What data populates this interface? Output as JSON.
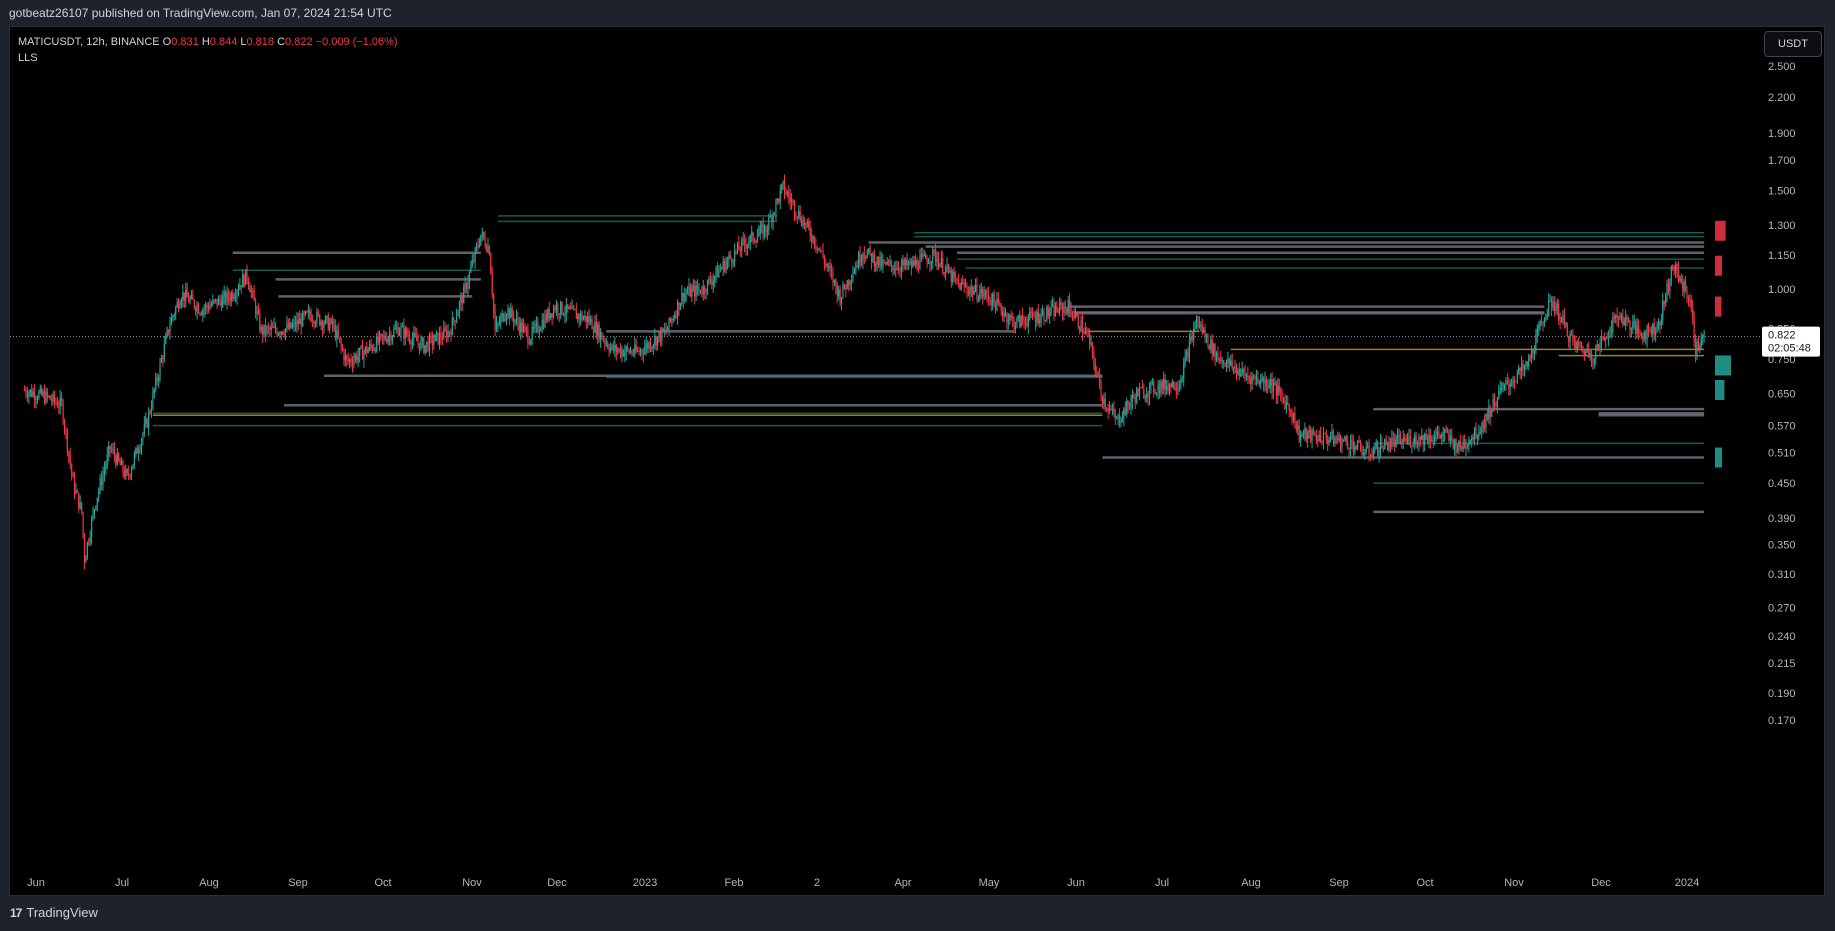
{
  "header": {
    "published_text": "gotbeatz26107 published on TradingView.com, Jan 07, 2024 21:54 UTC"
  },
  "legend": {
    "symbol": "MATICUSDT, 12h, BINANCE",
    "open_label": "O",
    "open": "0.831",
    "high_label": "H",
    "high": "0.844",
    "low_label": "L",
    "low": "0.818",
    "close_label": "C",
    "close": "0.822",
    "change": "−0.009 (−1.06%)",
    "study": "LLS"
  },
  "currency_button": "USDT",
  "footer": {
    "brand": "TradingView",
    "brand_glyph": "17"
  },
  "price_tag": {
    "price": "0.822",
    "countdown": "02:05:48"
  },
  "colors": {
    "up": "#26a69a",
    "down": "#f23645",
    "level_teal": "#26a69a",
    "level_gray": "#787b86",
    "level_gold": "#c9a227",
    "background": "#000000"
  },
  "chart_data": {
    "type": "candlestick",
    "symbol": "MATICUSDT",
    "interval": "12h",
    "exchange": "BINANCE",
    "yscale": "log",
    "ylim": [
      0.16,
      2.7
    ],
    "y_ticks": [
      "2.500",
      "2.200",
      "1.900",
      "1.700",
      "1.500",
      "1.300",
      "1.150",
      "1.000",
      "0.850",
      "0.750",
      "0.650",
      "0.570",
      "0.510",
      "0.450",
      "0.390",
      "0.350",
      "0.310",
      "0.270",
      "0.240",
      "0.215",
      "0.190",
      "0.170"
    ],
    "x_ticks": [
      "Jun",
      "Jul",
      "Aug",
      "Sep",
      "Oct",
      "Nov",
      "Dec",
      "2023",
      "Feb",
      "2",
      "Apr",
      "May",
      "Jun",
      "Jul",
      "Aug",
      "Sep",
      "Oct",
      "Nov",
      "Dec",
      "2024"
    ],
    "x_range": [
      "2022-05-28",
      "2024-01-07"
    ],
    "price_path": [
      [
        "2022-05-28",
        0.66
      ],
      [
        "2022-06-05",
        0.64
      ],
      [
        "2022-06-10",
        0.62
      ],
      [
        "2022-06-14",
        0.45
      ],
      [
        "2022-06-17",
        0.4
      ],
      [
        "2022-06-18",
        0.33
      ],
      [
        "2022-06-22",
        0.42
      ],
      [
        "2022-06-27",
        0.52
      ],
      [
        "2022-07-03",
        0.46
      ],
      [
        "2022-07-10",
        0.58
      ],
      [
        "2022-07-18",
        0.87
      ],
      [
        "2022-07-22",
        0.98
      ],
      [
        "2022-07-29",
        0.92
      ],
      [
        "2022-08-08",
        0.97
      ],
      [
        "2022-08-14",
        1.06
      ],
      [
        "2022-08-19",
        0.84
      ],
      [
        "2022-08-29",
        0.85
      ],
      [
        "2022-09-05",
        0.9
      ],
      [
        "2022-09-13",
        0.86
      ],
      [
        "2022-09-18",
        0.74
      ],
      [
        "2022-09-27",
        0.79
      ],
      [
        "2022-10-06",
        0.85
      ],
      [
        "2022-10-15",
        0.79
      ],
      [
        "2022-10-24",
        0.84
      ],
      [
        "2022-10-29",
        0.98
      ],
      [
        "2022-11-04",
        1.25
      ],
      [
        "2022-11-07",
        1.18
      ],
      [
        "2022-11-09",
        0.84
      ],
      [
        "2022-11-13",
        0.92
      ],
      [
        "2022-11-21",
        0.82
      ],
      [
        "2022-11-30",
        0.93
      ],
      [
        "2022-12-12",
        0.88
      ],
      [
        "2022-12-20",
        0.78
      ],
      [
        "2022-12-29",
        0.77
      ],
      [
        "2023-01-08",
        0.84
      ],
      [
        "2023-01-14",
        0.98
      ],
      [
        "2023-01-21",
        1.0
      ],
      [
        "2023-01-28",
        1.1
      ],
      [
        "2023-02-04",
        1.2
      ],
      [
        "2023-02-12",
        1.28
      ],
      [
        "2023-02-18",
        1.52
      ],
      [
        "2023-02-22",
        1.4
      ],
      [
        "2023-03-02",
        1.2
      ],
      [
        "2023-03-10",
        0.97
      ],
      [
        "2023-03-18",
        1.17
      ],
      [
        "2023-03-25",
        1.1
      ],
      [
        "2023-04-04",
        1.1
      ],
      [
        "2023-04-12",
        1.15
      ],
      [
        "2023-04-20",
        1.02
      ],
      [
        "2023-05-01",
        0.97
      ],
      [
        "2023-05-10",
        0.87
      ],
      [
        "2023-05-20",
        0.9
      ],
      [
        "2023-05-29",
        0.93
      ],
      [
        "2023-06-05",
        0.82
      ],
      [
        "2023-06-10",
        0.64
      ],
      [
        "2023-06-15",
        0.58
      ],
      [
        "2023-06-22",
        0.65
      ],
      [
        "2023-06-30",
        0.67
      ],
      [
        "2023-07-07",
        0.68
      ],
      [
        "2023-07-13",
        0.88
      ],
      [
        "2023-07-20",
        0.76
      ],
      [
        "2023-07-30",
        0.7
      ],
      [
        "2023-08-08",
        0.68
      ],
      [
        "2023-08-15",
        0.61
      ],
      [
        "2023-08-18",
        0.55
      ],
      [
        "2023-08-30",
        0.54
      ],
      [
        "2023-09-05",
        0.53
      ],
      [
        "2023-09-11",
        0.51
      ],
      [
        "2023-09-18",
        0.53
      ],
      [
        "2023-09-28",
        0.54
      ],
      [
        "2023-10-08",
        0.55
      ],
      [
        "2023-10-13",
        0.52
      ],
      [
        "2023-10-20",
        0.56
      ],
      [
        "2023-10-28",
        0.66
      ],
      [
        "2023-11-06",
        0.73
      ],
      [
        "2023-11-12",
        0.9
      ],
      [
        "2023-11-15",
        0.95
      ],
      [
        "2023-11-22",
        0.8
      ],
      [
        "2023-11-29",
        0.76
      ],
      [
        "2023-12-08",
        0.9
      ],
      [
        "2023-12-16",
        0.83
      ],
      [
        "2023-12-22",
        0.86
      ],
      [
        "2023-12-27",
        1.1
      ],
      [
        "2024-01-02",
        0.96
      ],
      [
        "2024-01-04",
        0.78
      ],
      [
        "2024-01-07",
        0.822
      ]
    ],
    "levels": [
      {
        "price": 1.26,
        "from": "2023-04-05",
        "to": "2024-01-07",
        "color": "teal"
      },
      {
        "price": 1.24,
        "from": "2023-04-05",
        "to": "2024-01-07",
        "color": "teal"
      },
      {
        "price": 1.21,
        "from": "2023-03-20",
        "to": "2024-01-07",
        "color": "gray"
      },
      {
        "price": 1.19,
        "from": "2023-04-09",
        "to": "2024-01-07",
        "color": "gray"
      },
      {
        "price": 1.16,
        "from": "2023-04-20",
        "to": "2024-01-07",
        "color": "gray"
      },
      {
        "price": 1.13,
        "from": "2023-04-20",
        "to": "2024-01-07",
        "color": "teal"
      },
      {
        "price": 1.09,
        "from": "2023-04-23",
        "to": "2024-01-07",
        "color": "teal"
      },
      {
        "price": 1.35,
        "from": "2022-11-10",
        "to": "2023-02-16",
        "color": "teal"
      },
      {
        "price": 1.32,
        "from": "2022-11-10",
        "to": "2023-02-16",
        "color": "teal"
      },
      {
        "price": 1.16,
        "from": "2022-08-09",
        "to": "2022-11-04",
        "color": "gray"
      },
      {
        "price": 1.08,
        "from": "2022-08-09",
        "to": "2022-11-04",
        "color": "teal"
      },
      {
        "price": 1.04,
        "from": "2022-08-24",
        "to": "2022-11-04",
        "color": "gray"
      },
      {
        "price": 0.97,
        "from": "2022-08-25",
        "to": "2022-11-01",
        "color": "gray"
      },
      {
        "price": 0.93,
        "from": "2023-05-29",
        "to": "2023-11-12",
        "color": "gray"
      },
      {
        "price": 0.91,
        "from": "2023-05-31",
        "to": "2023-11-12",
        "color": "red"
      },
      {
        "price": 0.905,
        "from": "2023-05-31",
        "to": "2023-11-12",
        "color": "gray"
      },
      {
        "price": 0.84,
        "from": "2023-06-05",
        "to": "2023-07-14",
        "color": "gold"
      },
      {
        "price": 0.84,
        "from": "2022-12-18",
        "to": "2023-05-10",
        "color": "gray"
      },
      {
        "price": 0.78,
        "from": "2023-07-25",
        "to": "2024-01-07",
        "color": "gold"
      },
      {
        "price": 0.76,
        "from": "2023-11-17",
        "to": "2024-01-07",
        "color": "gold"
      },
      {
        "price": 0.7,
        "from": "2022-09-10",
        "to": "2023-06-10",
        "color": "gray"
      },
      {
        "price": 0.695,
        "from": "2022-12-18",
        "to": "2023-06-10",
        "color": "teal"
      },
      {
        "price": 0.62,
        "from": "2022-08-27",
        "to": "2023-06-10",
        "color": "gray"
      },
      {
        "price": 0.595,
        "from": "2022-07-12",
        "to": "2023-06-10",
        "color": "gold"
      },
      {
        "price": 0.6,
        "from": "2022-07-12",
        "to": "2023-06-10",
        "color": "teal"
      },
      {
        "price": 0.57,
        "from": "2022-07-12",
        "to": "2023-06-10",
        "color": "teal"
      },
      {
        "price": 0.61,
        "from": "2023-09-13",
        "to": "2024-01-07",
        "color": "gray"
      },
      {
        "price": 0.6,
        "from": "2023-12-01",
        "to": "2024-01-07",
        "color": "gray"
      },
      {
        "price": 0.595,
        "from": "2023-12-01",
        "to": "2024-01-07",
        "color": "gray"
      },
      {
        "price": 0.53,
        "from": "2023-09-13",
        "to": "2024-01-07",
        "color": "teal"
      },
      {
        "price": 0.5,
        "from": "2023-06-10",
        "to": "2024-01-07",
        "color": "gray"
      },
      {
        "price": 0.45,
        "from": "2023-09-13",
        "to": "2024-01-07",
        "color": "teal"
      },
      {
        "price": 0.4,
        "from": "2023-09-13",
        "to": "2024-01-07",
        "color": "gray"
      }
    ],
    "volume_profile": [
      {
        "price": 1.27,
        "weight": 0.55,
        "side": "sell"
      },
      {
        "price": 1.1,
        "weight": 0.25,
        "side": "sell"
      },
      {
        "price": 0.93,
        "weight": 0.2,
        "side": "sell"
      },
      {
        "price": 0.73,
        "weight": 1.0,
        "side": "buy"
      },
      {
        "price": 0.66,
        "weight": 0.45,
        "side": "buy"
      },
      {
        "price": 0.5,
        "weight": 0.25,
        "side": "buy"
      }
    ]
  }
}
